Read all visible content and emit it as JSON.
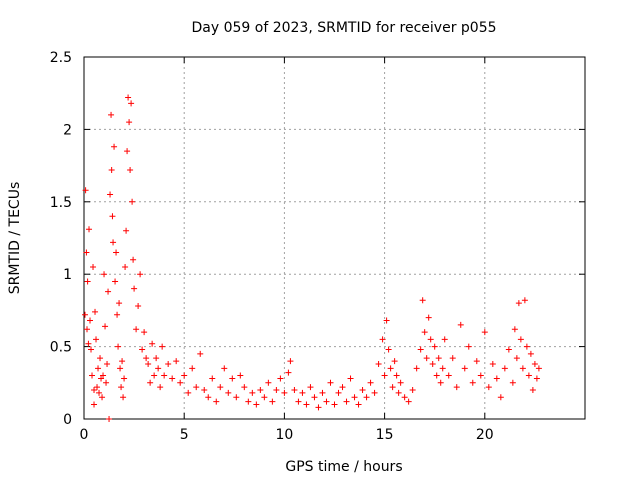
{
  "chart_data": {
    "type": "scatter",
    "title": "Day 059 of 2023, SRMTID for receiver p055",
    "xlabel": "GPS time / hours",
    "ylabel": "SRMTID / TECUs",
    "xlim": [
      0,
      25
    ],
    "ylim": [
      0,
      2.5
    ],
    "xticks": [
      0,
      5,
      10,
      15,
      20
    ],
    "xtick_labels": [
      "0",
      "5",
      "10",
      "15",
      "20"
    ],
    "yticks": [
      0,
      0.5,
      1,
      1.5,
      2,
      2.5
    ],
    "ytick_labels": [
      "0",
      "0.5",
      "1",
      "1.5",
      "2",
      "2.5"
    ],
    "grid": true,
    "marker": "+",
    "series": [
      {
        "name": "SRMTID",
        "color": "#ff0000",
        "points": [
          [
            0.05,
            0.72
          ],
          [
            0.08,
            1.58
          ],
          [
            0.12,
            1.15
          ],
          [
            0.15,
            0.62
          ],
          [
            0.18,
            0.95
          ],
          [
            0.22,
            0.52
          ],
          [
            0.25,
            1.31
          ],
          [
            0.3,
            0.68
          ],
          [
            0.35,
            0.48
          ],
          [
            0.4,
            0.3
          ],
          [
            0.45,
            1.05
          ],
          [
            0.5,
            0.2
          ],
          [
            0.5,
            0.1
          ],
          [
            0.55,
            0.74
          ],
          [
            0.6,
            0.55
          ],
          [
            0.65,
            0.22
          ],
          [
            0.7,
            0.35
          ],
          [
            0.75,
            0.18
          ],
          [
            0.8,
            0.42
          ],
          [
            0.85,
            0.28
          ],
          [
            0.9,
            0.15
          ],
          [
            0.95,
            0.3
          ],
          [
            1.0,
            1.0
          ],
          [
            1.05,
            0.64
          ],
          [
            1.1,
            0.25
          ],
          [
            1.15,
            0.38
          ],
          [
            1.2,
            0.88
          ],
          [
            1.25,
            0.0
          ],
          [
            1.3,
            1.55
          ],
          [
            1.35,
            2.1
          ],
          [
            1.38,
            1.72
          ],
          [
            1.42,
            1.4
          ],
          [
            1.45,
            1.22
          ],
          [
            1.5,
            1.88
          ],
          [
            1.55,
            0.95
          ],
          [
            1.6,
            1.15
          ],
          [
            1.65,
            0.72
          ],
          [
            1.7,
            0.5
          ],
          [
            1.75,
            0.8
          ],
          [
            1.8,
            0.35
          ],
          [
            1.85,
            0.22
          ],
          [
            1.9,
            0.4
          ],
          [
            1.95,
            0.15
          ],
          [
            2.0,
            0.28
          ],
          [
            2.05,
            1.05
          ],
          [
            2.1,
            1.3
          ],
          [
            2.15,
            1.85
          ],
          [
            2.2,
            2.22
          ],
          [
            2.25,
            2.05
          ],
          [
            2.3,
            1.72
          ],
          [
            2.35,
            2.18
          ],
          [
            2.4,
            1.5
          ],
          [
            2.45,
            1.1
          ],
          [
            2.5,
            0.9
          ],
          [
            2.6,
            0.62
          ],
          [
            2.7,
            0.78
          ],
          [
            2.8,
            1.0
          ],
          [
            2.9,
            0.48
          ],
          [
            3.0,
            0.6
          ],
          [
            3.1,
            0.42
          ],
          [
            3.2,
            0.38
          ],
          [
            3.3,
            0.25
          ],
          [
            3.4,
            0.52
          ],
          [
            3.5,
            0.3
          ],
          [
            3.6,
            0.42
          ],
          [
            3.7,
            0.35
          ],
          [
            3.8,
            0.22
          ],
          [
            3.9,
            0.5
          ],
          [
            4.0,
            0.3
          ],
          [
            4.2,
            0.38
          ],
          [
            4.4,
            0.28
          ],
          [
            4.6,
            0.4
          ],
          [
            4.8,
            0.25
          ],
          [
            5.0,
            0.3
          ],
          [
            5.2,
            0.18
          ],
          [
            5.4,
            0.35
          ],
          [
            5.6,
            0.22
          ],
          [
            5.8,
            0.45
          ],
          [
            6.0,
            0.2
          ],
          [
            6.2,
            0.15
          ],
          [
            6.4,
            0.28
          ],
          [
            6.6,
            0.12
          ],
          [
            6.8,
            0.22
          ],
          [
            7.0,
            0.35
          ],
          [
            7.2,
            0.18
          ],
          [
            7.4,
            0.28
          ],
          [
            7.6,
            0.15
          ],
          [
            7.8,
            0.3
          ],
          [
            8.0,
            0.22
          ],
          [
            8.2,
            0.12
          ],
          [
            8.4,
            0.18
          ],
          [
            8.6,
            0.1
          ],
          [
            8.8,
            0.2
          ],
          [
            9.0,
            0.15
          ],
          [
            9.2,
            0.25
          ],
          [
            9.4,
            0.12
          ],
          [
            9.6,
            0.2
          ],
          [
            9.8,
            0.28
          ],
          [
            10.0,
            0.18
          ],
          [
            10.2,
            0.32
          ],
          [
            10.3,
            0.4
          ],
          [
            10.5,
            0.2
          ],
          [
            10.7,
            0.12
          ],
          [
            10.9,
            0.18
          ],
          [
            11.1,
            0.1
          ],
          [
            11.3,
            0.22
          ],
          [
            11.5,
            0.15
          ],
          [
            11.7,
            0.08
          ],
          [
            11.9,
            0.18
          ],
          [
            12.1,
            0.12
          ],
          [
            12.3,
            0.25
          ],
          [
            12.5,
            0.1
          ],
          [
            12.7,
            0.18
          ],
          [
            12.9,
            0.22
          ],
          [
            13.1,
            0.12
          ],
          [
            13.3,
            0.28
          ],
          [
            13.5,
            0.15
          ],
          [
            13.7,
            0.1
          ],
          [
            13.9,
            0.2
          ],
          [
            14.1,
            0.15
          ],
          [
            14.3,
            0.25
          ],
          [
            14.5,
            0.18
          ],
          [
            14.7,
            0.38
          ],
          [
            14.9,
            0.55
          ],
          [
            15.0,
            0.3
          ],
          [
            15.1,
            0.68
          ],
          [
            15.2,
            0.48
          ],
          [
            15.3,
            0.35
          ],
          [
            15.4,
            0.22
          ],
          [
            15.5,
            0.4
          ],
          [
            15.6,
            0.3
          ],
          [
            15.7,
            0.18
          ],
          [
            15.8,
            0.25
          ],
          [
            16.0,
            0.15
          ],
          [
            16.2,
            0.12
          ],
          [
            16.4,
            0.2
          ],
          [
            16.6,
            0.35
          ],
          [
            16.8,
            0.48
          ],
          [
            16.9,
            0.82
          ],
          [
            17.0,
            0.6
          ],
          [
            17.1,
            0.42
          ],
          [
            17.2,
            0.7
          ],
          [
            17.3,
            0.55
          ],
          [
            17.4,
            0.38
          ],
          [
            17.5,
            0.5
          ],
          [
            17.6,
            0.3
          ],
          [
            17.7,
            0.42
          ],
          [
            17.8,
            0.25
          ],
          [
            17.9,
            0.35
          ],
          [
            18.0,
            0.55
          ],
          [
            18.2,
            0.3
          ],
          [
            18.4,
            0.42
          ],
          [
            18.6,
            0.22
          ],
          [
            18.8,
            0.65
          ],
          [
            19.0,
            0.35
          ],
          [
            19.2,
            0.5
          ],
          [
            19.4,
            0.25
          ],
          [
            19.6,
            0.4
          ],
          [
            19.8,
            0.3
          ],
          [
            20.0,
            0.6
          ],
          [
            20.2,
            0.22
          ],
          [
            20.4,
            0.38
          ],
          [
            20.6,
            0.28
          ],
          [
            20.8,
            0.15
          ],
          [
            21.0,
            0.35
          ],
          [
            21.2,
            0.48
          ],
          [
            21.4,
            0.25
          ],
          [
            21.5,
            0.62
          ],
          [
            21.6,
            0.42
          ],
          [
            21.7,
            0.8
          ],
          [
            21.8,
            0.55
          ],
          [
            21.9,
            0.35
          ],
          [
            22.0,
            0.82
          ],
          [
            22.1,
            0.5
          ],
          [
            22.2,
            0.3
          ],
          [
            22.3,
            0.45
          ],
          [
            22.4,
            0.2
          ],
          [
            22.5,
            0.38
          ],
          [
            22.6,
            0.28
          ],
          [
            22.7,
            0.35
          ]
        ]
      }
    ]
  }
}
